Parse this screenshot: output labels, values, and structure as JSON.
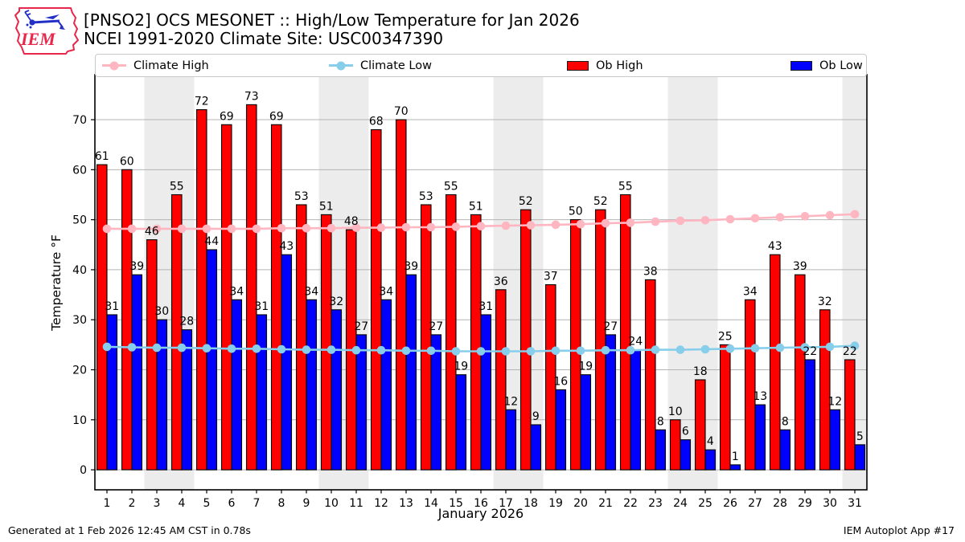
{
  "logo": {
    "text": "IEM"
  },
  "footer": {
    "left": "Generated at 1 Feb 2026 12:45 AM CST in 0.78s",
    "right": "IEM Autoplot App #17"
  },
  "chart_data": {
    "type": "bar",
    "title": "[PNSO2] OCS MESONET :: High/Low Temperature for Jan 2026",
    "subtitle": "NCEI 1991-2020 Climate Site: USC00347390",
    "xlabel": "January 2026",
    "ylabel": "Temperature °F",
    "ylim": [
      -4,
      79
    ],
    "yticks": [
      0,
      10,
      20,
      30,
      40,
      50,
      60,
      70
    ],
    "grid": true,
    "legend_position": "top",
    "days": [
      1,
      2,
      3,
      4,
      5,
      6,
      7,
      8,
      9,
      10,
      11,
      12,
      13,
      14,
      15,
      16,
      17,
      18,
      19,
      20,
      21,
      22,
      23,
      24,
      25,
      26,
      27,
      28,
      29,
      30,
      31
    ],
    "weekend_shaded_days": [
      3,
      4,
      10,
      11,
      17,
      18,
      24,
      25,
      31
    ],
    "series": [
      {
        "name": "Climate High",
        "type": "line",
        "color": "#ffb6c1",
        "values": [
          48.2,
          48.2,
          48.2,
          48.2,
          48.2,
          48.2,
          48.2,
          48.3,
          48.3,
          48.3,
          48.4,
          48.4,
          48.5,
          48.5,
          48.6,
          48.7,
          48.8,
          48.9,
          49.0,
          49.1,
          49.3,
          49.4,
          49.6,
          49.8,
          49.9,
          50.1,
          50.3,
          50.5,
          50.7,
          50.9,
          51.1
        ]
      },
      {
        "name": "Climate Low",
        "type": "line",
        "color": "#87ceeb",
        "values": [
          24.6,
          24.5,
          24.4,
          24.4,
          24.3,
          24.2,
          24.2,
          24.1,
          24.0,
          24.0,
          23.9,
          23.9,
          23.8,
          23.8,
          23.7,
          23.7,
          23.7,
          23.7,
          23.8,
          23.8,
          23.9,
          23.9,
          24.0,
          24.0,
          24.1,
          24.2,
          24.3,
          24.4,
          24.5,
          24.6,
          24.8
        ]
      },
      {
        "name": "Ob High",
        "type": "bar",
        "color": "#ff0000",
        "values": [
          61,
          60,
          46,
          55,
          72,
          69,
          73,
          69,
          53,
          51,
          48,
          68,
          70,
          53,
          55,
          51,
          36,
          52,
          37,
          50,
          52,
          55,
          38,
          10,
          18,
          25,
          34,
          43,
          39,
          32,
          22
        ]
      },
      {
        "name": "Ob Low",
        "type": "bar",
        "color": "#0000ff",
        "values": [
          31,
          39,
          30,
          28,
          44,
          34,
          31,
          43,
          34,
          32,
          27,
          34,
          39,
          27,
          19,
          31,
          12,
          9,
          16,
          19,
          27,
          24,
          8,
          6,
          4,
          1,
          13,
          8,
          22,
          12,
          5
        ]
      }
    ],
    "colors": {
      "weekend_band": "#ececec",
      "grid": "#b4b4b4",
      "bar_edge": "#000000",
      "axis": "#000000"
    }
  }
}
